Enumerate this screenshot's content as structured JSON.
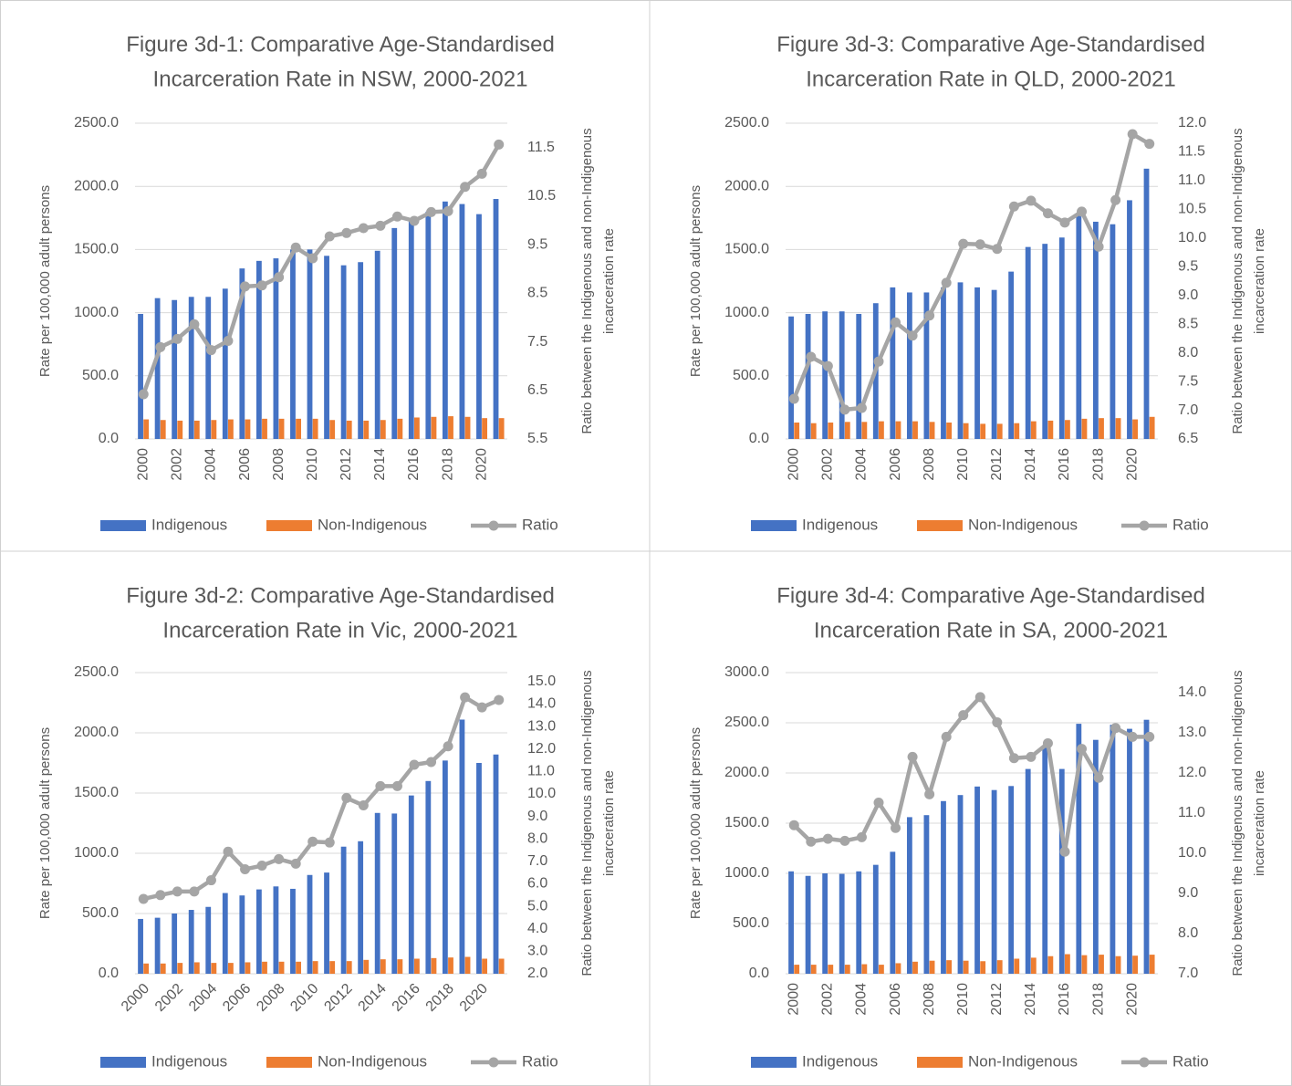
{
  "chart_data": [
    {
      "type": "bar",
      "title": [
        "Figure 3d-1: Comparative Age-Standardised",
        "Incarceration Rate in NSW, 2000-2021"
      ],
      "ylabel": "Rate per 100,000 adult persons",
      "y2label": [
        "Ratio between the Indigenous and non-Indigenous",
        "incarceration rate"
      ],
      "categories": [
        "2000",
        null,
        "2002",
        null,
        "2004",
        null,
        "2006",
        null,
        "2008",
        null,
        "2010",
        null,
        "2012",
        null,
        "2014",
        null,
        "2016",
        null,
        "2018",
        null,
        "2020",
        null
      ],
      "xtick_rotation": -90,
      "ylim": [
        0,
        2500
      ],
      "yticks": [
        {
          "value": 0,
          "label": "0.0"
        },
        {
          "value": 500,
          "label": "500.0"
        },
        {
          "value": 1000,
          "label": "1000.0"
        },
        {
          "value": 1500,
          "label": "1500.0"
        },
        {
          "value": 2000,
          "label": "2000.0"
        },
        {
          "value": 2500,
          "label": "2500.0"
        }
      ],
      "y2lim": [
        5.5,
        12
      ],
      "y2ticks": [
        5.5,
        6.5,
        7.5,
        8.5,
        9.5,
        10.5,
        11.5
      ],
      "grid": true,
      "legend": "bottom",
      "series": [
        {
          "name": "Indigenous",
          "color": "#4472c4",
          "values": [
            990,
            1115,
            1100,
            1125,
            1125,
            1190,
            1350,
            1410,
            1430,
            1500,
            1500,
            1450,
            1375,
            1400,
            1490,
            1670,
            1750,
            1800,
            1880,
            1860,
            1780,
            1900
          ]
        },
        {
          "name": "Non-Indigenous",
          "color": "#ed7d31",
          "values": [
            155,
            150,
            145,
            145,
            150,
            155,
            155,
            160,
            160,
            160,
            160,
            150,
            145,
            145,
            150,
            160,
            170,
            175,
            180,
            175,
            165,
            165
          ]
        },
        {
          "name": "Ratio",
          "color": "#a5a5a5",
          "type": "line",
          "axis": "y2",
          "values": [
            6.42,
            7.39,
            7.56,
            7.86,
            7.33,
            7.52,
            8.64,
            8.66,
            8.83,
            9.44,
            9.22,
            9.67,
            9.74,
            9.84,
            9.89,
            10.08,
            9.99,
            10.17,
            10.19,
            10.69,
            10.96,
            11.56
          ]
        }
      ]
    },
    {
      "type": "bar",
      "title": [
        "Figure 3d-3: Comparative Age-Standardised",
        "Incarceration Rate in QLD, 2000-2021"
      ],
      "ylabel": "Rate per 100,000 adult persons",
      "y2label": [
        "Ratio between the Indigenous and non-Indigenous",
        "incarceration rate"
      ],
      "categories": [
        "2000",
        null,
        "2002",
        null,
        "2004",
        null,
        "2006",
        null,
        "2008",
        null,
        "2010",
        null,
        "2012",
        null,
        "2014",
        null,
        "2016",
        null,
        "2018",
        null,
        "2020",
        null
      ],
      "xtick_rotation": -90,
      "ylim": [
        0,
        2500
      ],
      "yticks": [
        {
          "value": 0,
          "label": "0.0"
        },
        {
          "value": 500,
          "label": "500.0"
        },
        {
          "value": 1000,
          "label": "1000.0"
        },
        {
          "value": 1500,
          "label": "1500.0"
        },
        {
          "value": 2000,
          "label": "2000.0"
        },
        {
          "value": 2500,
          "label": "2500.0"
        }
      ],
      "y2lim": [
        6.5,
        12
      ],
      "y2ticks": [
        6.5,
        {
          "value": 7,
          "label": "7.0"
        },
        7.5,
        {
          "value": 8,
          "label": "8.0"
        },
        8.5,
        {
          "value": 9,
          "label": "9.0"
        },
        9.5,
        {
          "value": 10,
          "label": "10.0"
        },
        10.5,
        {
          "value": 11,
          "label": "11.0"
        },
        11.5,
        {
          "value": 12,
          "label": "12.0"
        }
      ],
      "grid": true,
      "legend": "bottom",
      "series": [
        {
          "name": "Indigenous",
          "color": "#4472c4",
          "values": [
            970,
            990,
            1010,
            1010,
            990,
            1075,
            1200,
            1160,
            1160,
            1200,
            1240,
            1200,
            1180,
            1325,
            1520,
            1545,
            1595,
            1780,
            1720,
            1700,
            1890,
            2140
          ]
        },
        {
          "name": "Non-Indigenous",
          "color": "#ed7d31",
          "values": [
            130,
            125,
            130,
            135,
            135,
            140,
            140,
            140,
            135,
            130,
            125,
            120,
            120,
            125,
            140,
            145,
            150,
            160,
            165,
            165,
            155,
            175
          ]
        },
        {
          "name": "Ratio",
          "color": "#a5a5a5",
          "type": "line",
          "axis": "y2",
          "values": [
            7.2,
            7.93,
            7.77,
            7.01,
            7.04,
            7.85,
            8.53,
            8.3,
            8.65,
            9.22,
            9.9,
            9.89,
            9.81,
            10.55,
            10.65,
            10.43,
            10.27,
            10.46,
            9.85,
            10.66,
            11.81,
            11.64
          ]
        }
      ]
    },
    {
      "type": "bar",
      "title": [
        "Figure 3d-2: Comparative Age-Standardised",
        "Incarceration Rate in Vic, 2000-2021"
      ],
      "ylabel": "Rate per 100,000 adult persons",
      "y2label": [
        "Ratio between the Indigenous and non-Indigenous",
        "incarceration rate"
      ],
      "categories": [
        "2000",
        null,
        "2002",
        null,
        "2004",
        null,
        "2006",
        null,
        "2008",
        null,
        "2010",
        null,
        "2012",
        null,
        "2014",
        null,
        "2016",
        null,
        "2018",
        null,
        "2020",
        null
      ],
      "xtick_rotation": -45,
      "ylim": [
        0,
        2500
      ],
      "yticks": [
        {
          "value": 0,
          "label": "0.0"
        },
        {
          "value": 500,
          "label": "500.0"
        },
        {
          "value": 1000,
          "label": "1000.0"
        },
        {
          "value": 1500,
          "label": "1500.0"
        },
        {
          "value": 2000,
          "label": "2000.0"
        },
        {
          "value": 2500,
          "label": "2500.0"
        }
      ],
      "y2lim": [
        2,
        15.4
      ],
      "y2ticks": [
        {
          "value": 2,
          "label": "2.0"
        },
        {
          "value": 3,
          "label": "3.0"
        },
        {
          "value": 4,
          "label": "4.0"
        },
        {
          "value": 5,
          "label": "5.0"
        },
        {
          "value": 6,
          "label": "6.0"
        },
        {
          "value": 7,
          "label": "7.0"
        },
        {
          "value": 8,
          "label": "8.0"
        },
        {
          "value": 9,
          "label": "9.0"
        },
        {
          "value": 10,
          "label": "10.0"
        },
        {
          "value": 11,
          "label": "11.0"
        },
        {
          "value": 12,
          "label": "12.0"
        },
        {
          "value": 13,
          "label": "13.0"
        },
        {
          "value": 14,
          "label": "14.0"
        },
        {
          "value": 15,
          "label": "15.0"
        }
      ],
      "grid": true,
      "legend": "bottom",
      "series": [
        {
          "name": "Indigenous",
          "color": "#4472c4",
          "values": [
            455,
            465,
            500,
            530,
            555,
            670,
            650,
            700,
            725,
            705,
            820,
            840,
            1055,
            1100,
            1335,
            1330,
            1480,
            1600,
            1770,
            2110,
            1750,
            1820
          ]
        },
        {
          "name": "Non-Indigenous",
          "color": "#ed7d31",
          "values": [
            85,
            85,
            90,
            95,
            90,
            90,
            95,
            100,
            100,
            100,
            105,
            105,
            105,
            115,
            120,
            120,
            125,
            130,
            135,
            140,
            125,
            125
          ]
        },
        {
          "name": "Ratio",
          "color": "#a5a5a5",
          "type": "line",
          "axis": "y2",
          "values": [
            5.33,
            5.5,
            5.66,
            5.66,
            6.16,
            7.43,
            6.65,
            6.81,
            7.1,
            6.9,
            7.88,
            7.84,
            9.82,
            9.49,
            10.35,
            10.35,
            11.3,
            11.42,
            12.12,
            14.3,
            13.85,
            14.18
          ]
        }
      ]
    },
    {
      "type": "bar",
      "title": [
        "Figure 3d-4: Comparative Age-Standardised",
        "Incarceration Rate in SA, 2000-2021"
      ],
      "ylabel": "Rate per 100,000 adult persons",
      "y2label": [
        "Ratio between the Indigenous and non-Indigenous",
        "incarceration rate"
      ],
      "categories": [
        "2000",
        null,
        "2002",
        null,
        "2004",
        null,
        "2006",
        null,
        "2008",
        null,
        "2010",
        null,
        "2012",
        null,
        "2014",
        null,
        "2016",
        null,
        "2018",
        null,
        "2020",
        null
      ],
      "xtick_rotation": -90,
      "ylim": [
        0,
        3000
      ],
      "yticks": [
        {
          "value": 0,
          "label": "0.0"
        },
        {
          "value": 500,
          "label": "500.0"
        },
        {
          "value": 1000,
          "label": "1000.0"
        },
        {
          "value": 1500,
          "label": "1500.0"
        },
        {
          "value": 2000,
          "label": "2000.0"
        },
        {
          "value": 2500,
          "label": "2500.0"
        },
        {
          "value": 3000,
          "label": "3000.0"
        }
      ],
      "y2lim": [
        7,
        14.5
      ],
      "y2ticks": [
        {
          "value": 7,
          "label": "7.0"
        },
        {
          "value": 8,
          "label": "8.0"
        },
        {
          "value": 9,
          "label": "9.0"
        },
        {
          "value": 10,
          "label": "10.0"
        },
        {
          "value": 11,
          "label": "11.0"
        },
        {
          "value": 12,
          "label": "12.0"
        },
        {
          "value": 13,
          "label": "13.0"
        },
        {
          "value": 14,
          "label": "14.0"
        }
      ],
      "grid": true,
      "legend": "bottom",
      "series": [
        {
          "name": "Indigenous",
          "color": "#4472c4",
          "values": [
            1020,
            975,
            1000,
            995,
            1020,
            1085,
            1215,
            1560,
            1580,
            1720,
            1780,
            1865,
            1830,
            1870,
            2040,
            2270,
            2040,
            2490,
            2330,
            2480,
            2440,
            2530
          ]
        },
        {
          "name": "Non-Indigenous",
          "color": "#ed7d31",
          "values": [
            90,
            90,
            90,
            90,
            95,
            90,
            105,
            120,
            130,
            135,
            130,
            125,
            135,
            150,
            160,
            175,
            195,
            185,
            190,
            175,
            180,
            190
          ]
        },
        {
          "name": "Ratio",
          "color": "#a5a5a5",
          "type": "line",
          "axis": "y2",
          "values": [
            10.7,
            10.29,
            10.36,
            10.31,
            10.4,
            11.26,
            10.63,
            12.4,
            11.47,
            12.9,
            13.44,
            13.89,
            13.26,
            12.37,
            12.4,
            12.74,
            10.04,
            12.6,
            11.88,
            13.12,
            12.9,
            12.9
          ]
        }
      ]
    }
  ]
}
